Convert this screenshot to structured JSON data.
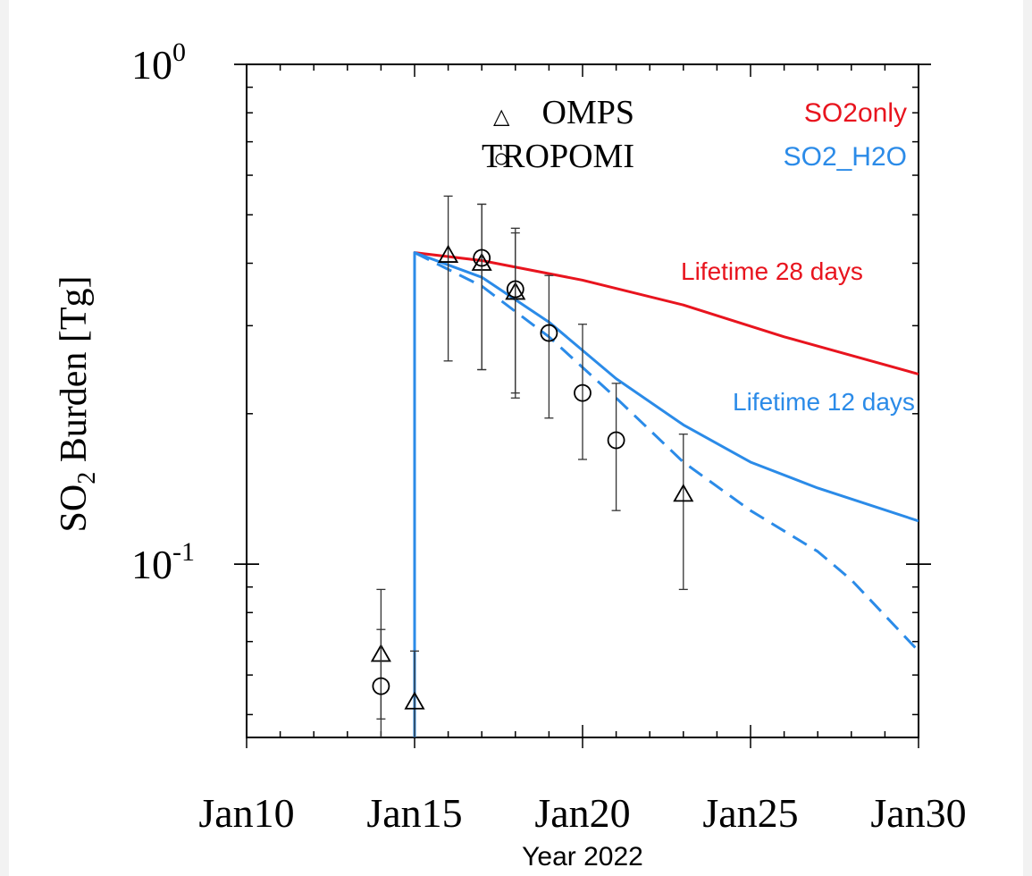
{
  "chart_data": {
    "type": "line",
    "xlabel": "Year 2022",
    "ylabel_main": "SO",
    "ylabel_sub": "2",
    "ylabel_rest": " Burden [Tg]",
    "xscale": "date",
    "yscale": "log",
    "xlim": [
      "2022-01-10",
      "2022-01-30"
    ],
    "ylim": [
      0.045,
      1.0
    ],
    "x_ticks": [
      {
        "date": "2022-01-10",
        "label": "Jan10"
      },
      {
        "date": "2022-01-15",
        "label": "Jan15"
      },
      {
        "date": "2022-01-20",
        "label": "Jan20"
      },
      {
        "date": "2022-01-25",
        "label": "Jan25"
      },
      {
        "date": "2022-01-30",
        "label": "Jan30"
      }
    ],
    "y_ticks": [
      {
        "value": 1.0,
        "base": "10",
        "exp": "0"
      },
      {
        "value": 0.1,
        "base": "10",
        "exp": "-1"
      }
    ],
    "grid": false,
    "series": [
      {
        "name": "SO2only",
        "color": "#e8141e",
        "style": "solid",
        "points": [
          [
            "2022-01-15",
            0.0
          ],
          [
            "2022-01-15",
            0.42
          ],
          [
            "2022-01-17",
            0.405
          ],
          [
            "2022-01-20",
            0.37
          ],
          [
            "2022-01-23",
            0.33
          ],
          [
            "2022-01-26",
            0.285
          ],
          [
            "2022-01-30",
            0.24
          ]
        ]
      },
      {
        "name": "SO2_H2O",
        "color": "#2b8be8",
        "style": "solid",
        "points": [
          [
            "2022-01-15",
            0.0
          ],
          [
            "2022-01-15",
            0.42
          ],
          [
            "2022-01-17",
            0.375
          ],
          [
            "2022-01-19",
            0.305
          ],
          [
            "2022-01-21",
            0.235
          ],
          [
            "2022-01-23",
            0.19
          ],
          [
            "2022-01-25",
            0.16
          ],
          [
            "2022-01-27",
            0.142
          ],
          [
            "2022-01-30",
            0.122
          ]
        ]
      },
      {
        "color": "#2b8be8",
        "style": "dashed",
        "points": [
          [
            "2022-01-15",
            0.42
          ],
          [
            "2022-01-17",
            0.36
          ],
          [
            "2022-01-19",
            0.285
          ],
          [
            "2022-01-21",
            0.215
          ],
          [
            "2022-01-23",
            0.16
          ],
          [
            "2022-01-25",
            0.128
          ],
          [
            "2022-01-27",
            0.106
          ],
          [
            "2022-01-28",
            0.093
          ],
          [
            "2022-01-30",
            0.067
          ]
        ]
      }
    ],
    "observations": [
      {
        "name": "OMPS",
        "marker": "triangle",
        "points": [
          {
            "date": "2022-01-14",
            "y": 0.066,
            "lo": 0.049,
            "hi": 0.089
          },
          {
            "date": "2022-01-15",
            "y": 0.053,
            "lo": 0.04,
            "hi": 0.067
          },
          {
            "date": "2022-01-16",
            "y": 0.415,
            "lo": 0.255,
            "hi": 0.545
          },
          {
            "date": "2022-01-17",
            "y": 0.4,
            "lo": 0.245,
            "hi": 0.525
          },
          {
            "date": "2022-01-18",
            "y": 0.35,
            "lo": 0.215,
            "hi": 0.47
          },
          {
            "date": "2022-01-23",
            "y": 0.138,
            "lo": 0.089,
            "hi": 0.182
          }
        ]
      },
      {
        "name": "TROPOMI",
        "marker": "circle",
        "points": [
          {
            "date": "2022-01-14",
            "y": 0.057,
            "lo": 0.043,
            "hi": 0.074
          },
          {
            "date": "2022-01-17",
            "y": 0.41,
            "lo": 0.245,
            "hi": 0.525
          },
          {
            "date": "2022-01-18",
            "y": 0.355,
            "lo": 0.22,
            "hi": 0.46
          },
          {
            "date": "2022-01-19",
            "y": 0.29,
            "lo": 0.196,
            "hi": 0.378
          },
          {
            "date": "2022-01-20",
            "y": 0.22,
            "lo": 0.162,
            "hi": 0.302
          },
          {
            "date": "2022-01-21",
            "y": 0.177,
            "lo": 0.128,
            "hi": 0.23
          }
        ]
      }
    ],
    "legend_markers": [
      {
        "symbol": "△",
        "label": "OMPS"
      },
      {
        "symbol": "○",
        "label": "TROPOMI"
      }
    ],
    "legend_lines": [
      {
        "label": "SO2only",
        "color": "#e8141e"
      },
      {
        "label": "SO2_H2O",
        "color": "#2b8be8"
      }
    ],
    "annotations": [
      {
        "text": "Lifetime 28 days",
        "color": "#e8141e"
      },
      {
        "text": "Lifetime 12 days",
        "color": "#2b8be8"
      }
    ]
  }
}
